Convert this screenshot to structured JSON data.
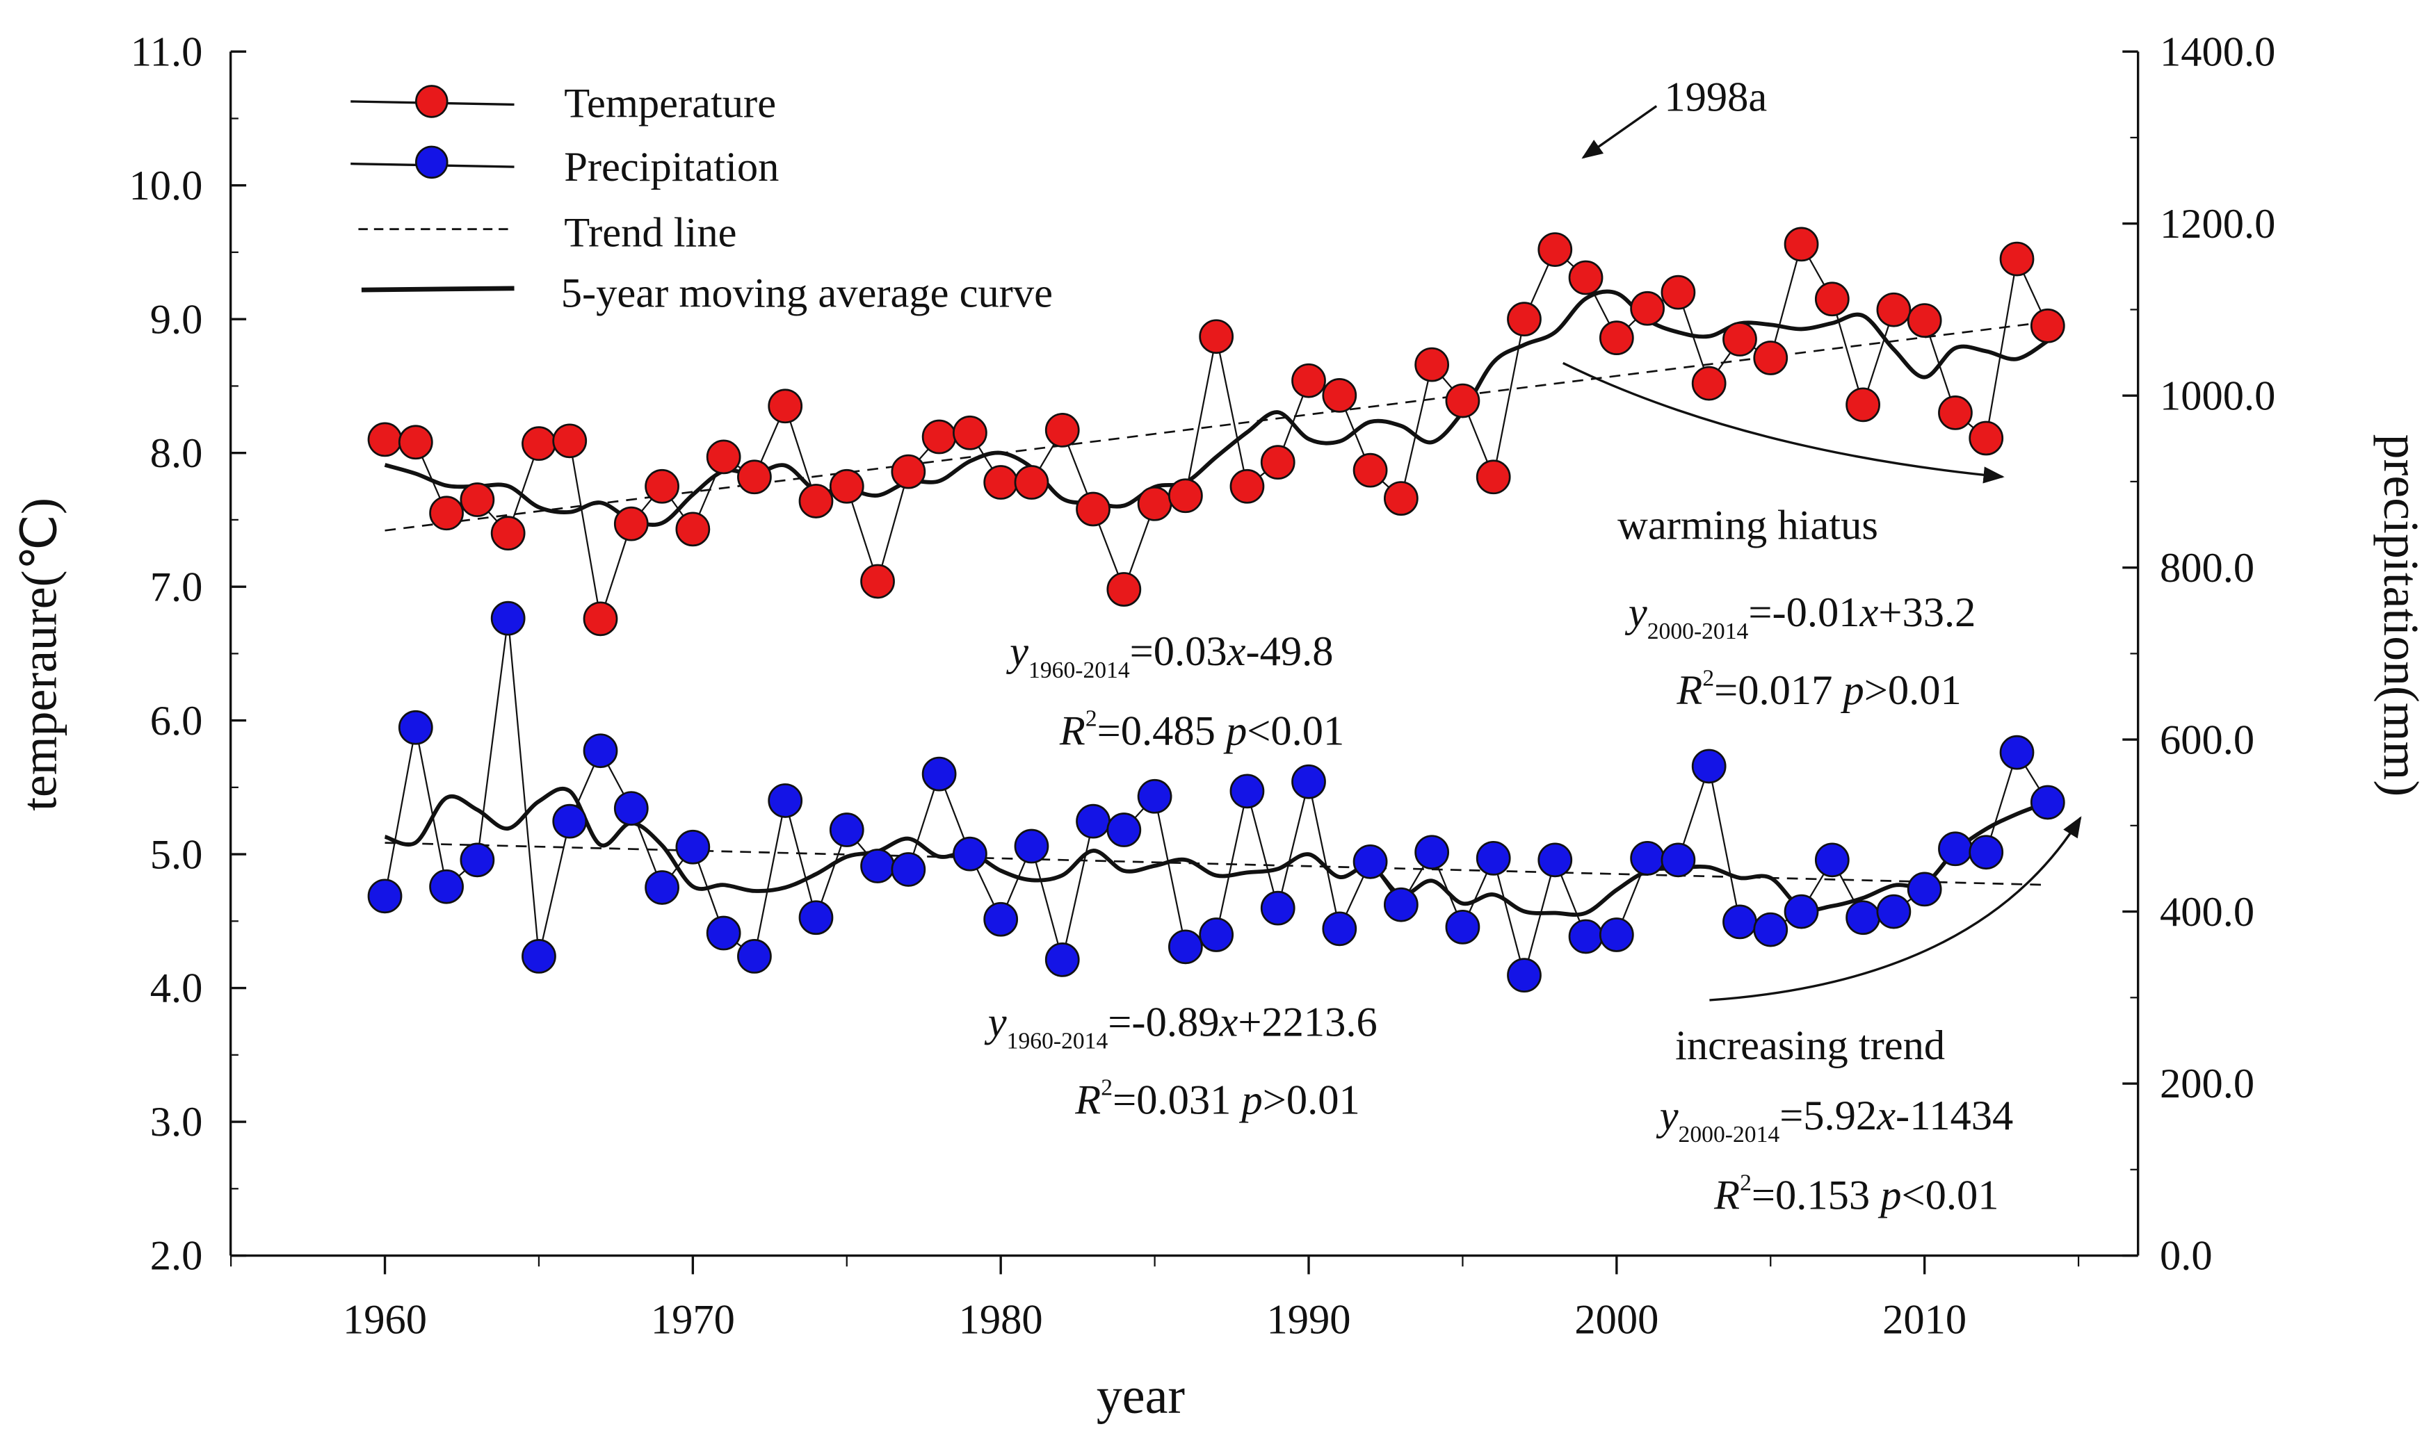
{
  "chart_data": {
    "type": "line",
    "x": [
      1960,
      1961,
      1962,
      1963,
      1964,
      1965,
      1966,
      1967,
      1968,
      1969,
      1970,
      1971,
      1972,
      1973,
      1974,
      1975,
      1976,
      1977,
      1978,
      1979,
      1980,
      1981,
      1982,
      1983,
      1984,
      1985,
      1986,
      1987,
      1988,
      1989,
      1990,
      1991,
      1992,
      1993,
      1994,
      1995,
      1996,
      1997,
      1998,
      1999,
      2000,
      2001,
      2002,
      2003,
      2004,
      2005,
      2006,
      2007,
      2008,
      2009,
      2010,
      2011,
      2012,
      2013,
      2014
    ],
    "series": [
      {
        "name": "Temperature",
        "axis": "left",
        "color": "#e8191b",
        "values": [
          8.1,
          8.08,
          7.55,
          7.65,
          7.4,
          8.07,
          8.09,
          6.76,
          7.47,
          7.75,
          7.43,
          7.97,
          7.82,
          8.35,
          7.64,
          7.75,
          7.04,
          7.86,
          8.12,
          8.15,
          7.78,
          7.78,
          8.17,
          7.58,
          6.98,
          7.62,
          7.68,
          8.87,
          7.75,
          7.93,
          8.54,
          8.43,
          7.87,
          7.66,
          8.66,
          8.39,
          7.82,
          9.0,
          9.52,
          9.31,
          8.86,
          9.08,
          9.2,
          8.52,
          8.85,
          8.71,
          9.56,
          9.15,
          8.36,
          9.07,
          8.99,
          8.3,
          8.11,
          9.45,
          8.95
        ]
      },
      {
        "name": "Precipitation",
        "axis": "right",
        "color": "#1414e6",
        "values": [
          418,
          614,
          429,
          460,
          741,
          348,
          505,
          587,
          520,
          428,
          475,
          375,
          348,
          529,
          393,
          495,
          453,
          449,
          560,
          467,
          391,
          476,
          344,
          505,
          495,
          534,
          359,
          373,
          540,
          404,
          551,
          380,
          458,
          408,
          469,
          382,
          462,
          326,
          460,
          371,
          373,
          462,
          460,
          569,
          388,
          379,
          400,
          460,
          393,
          400,
          426,
          473,
          469,
          585,
          527
        ]
      }
    ],
    "trend_lines": [
      {
        "series": "Temperature",
        "x": [
          1960,
          2014
        ],
        "y": [
          7.42,
          8.98
        ]
      },
      {
        "series": "Precipitation",
        "x": [
          1960,
          2014
        ],
        "y": [
          480,
          431
        ]
      }
    ],
    "legend": {
      "placement": "top-left",
      "items": [
        "Temperature",
        "Precipitation",
        "Trend line",
        "5-year moving average curve"
      ]
    },
    "xlabel": "year",
    "ylabel": "temperaure(℃)",
    "y2label": "precipitation(mm)",
    "xlim": [
      1955,
      2017
    ],
    "ylim": [
      2.0,
      11.0
    ],
    "y2lim": [
      0,
      1400
    ],
    "xticks": [
      "1960",
      "1970",
      "1980",
      "1990",
      "2000",
      "2010"
    ],
    "yticks": [
      "2.0",
      "3.0",
      "4.0",
      "5.0",
      "6.0",
      "7.0",
      "8.0",
      "9.0",
      "10.0",
      "11.0"
    ],
    "y2ticks": [
      "0.0",
      "200.0",
      "400.0",
      "600.0",
      "800.0",
      "1000.0",
      "1200.0",
      "1400.0"
    ],
    "annotations": {
      "a1998": "1998a",
      "hiatus": "warming hiatus",
      "increasing": "increasing trend",
      "t_all_y": "y",
      "t_all_sub": "1960-2014",
      "t_all_eq": "=0.03",
      "t_all_x": "x",
      "t_all_c": "-49.8",
      "t_all_r": "R",
      "t_all_r2": "2",
      "t_all_rv": "=0.485 ",
      "t_all_p": "p",
      "t_all_pv": "<0.01",
      "t_rec_y": "y",
      "t_rec_sub": "2000-2014",
      "t_rec_eq": "=-0.01",
      "t_rec_x": "x",
      "t_rec_c": "+33.2",
      "t_rec_r": "R",
      "t_rec_r2": "2",
      "t_rec_rv": "=0.017 ",
      "t_rec_p": "p",
      "t_rec_pv": ">0.01",
      "p_all_y": "y",
      "p_all_sub": "1960-2014",
      "p_all_eq": "=-0.89",
      "p_all_x": "x",
      "p_all_c": "+2213.6",
      "p_all_r": "R",
      "p_all_r2": "2",
      "p_all_rv": "=0.031 ",
      "p_all_p": "p",
      "p_all_pv": ">0.01",
      "p_rec_y": "y",
      "p_rec_sub": "2000-2014",
      "p_rec_eq": "=5.92",
      "p_rec_x": "x",
      "p_rec_c": "-11434",
      "p_rec_r": "R",
      "p_rec_r2": "2",
      "p_rec_rv": "=0.153 ",
      "p_rec_p": "p",
      "p_rec_pv": "<0.01"
    }
  }
}
